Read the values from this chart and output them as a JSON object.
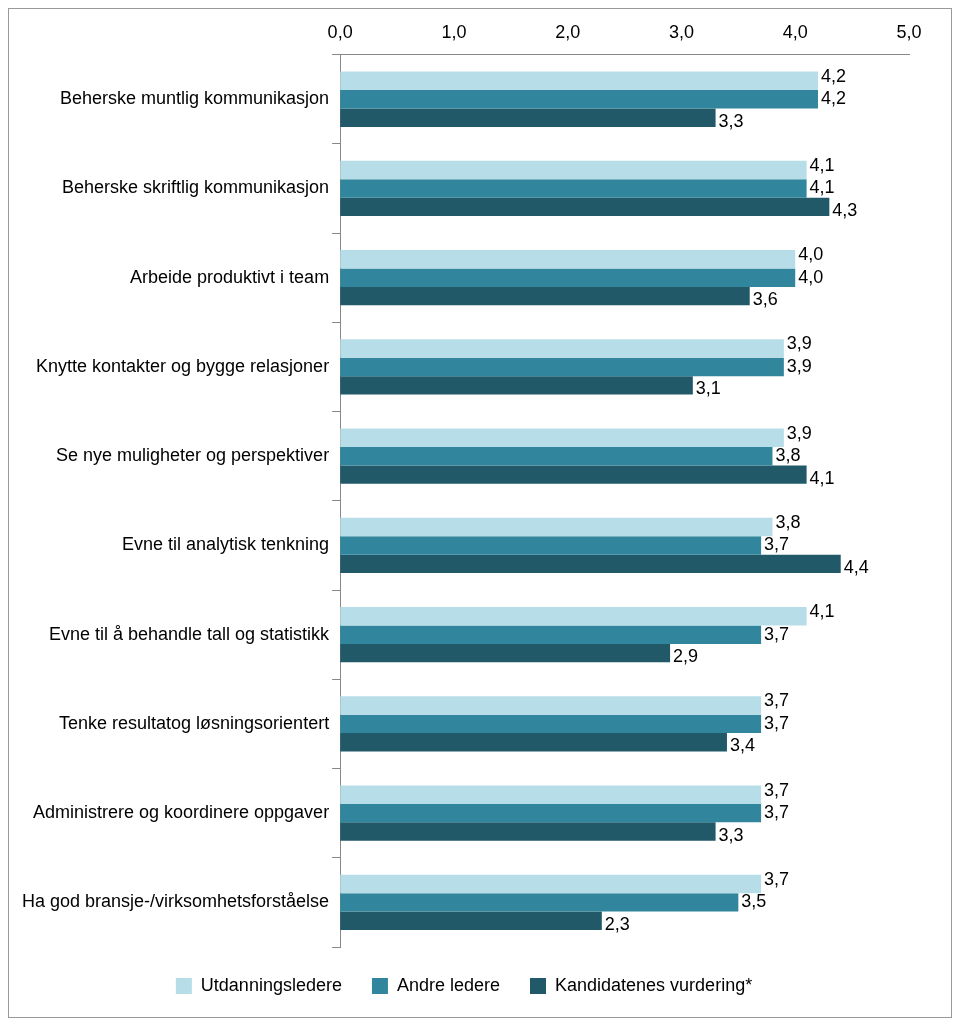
{
  "chart_data": {
    "type": "bar",
    "orientation": "horizontal",
    "categories": [
      "Beherske muntlig kommunikasjon",
      "Beherske skriftlig kommunikasjon",
      "Arbeide produktivt i team",
      "Knytte kontakter og bygge relasjoner",
      "Se nye muligheter og perspektiver",
      "Evne til analytisk tenkning",
      "Evne til å behandle tall og statistikk",
      "Tenke resultatog løsningsorientert",
      "Administrere og koordinere oppgaver",
      "Ha god bransje-/virksomhetsforståelse"
    ],
    "series": [
      {
        "name": "Utdanningsledere",
        "color": "#b7dde8",
        "values": [
          4.2,
          4.1,
          4.0,
          3.9,
          3.9,
          3.8,
          4.1,
          3.7,
          3.7,
          3.7
        ],
        "value_labels": [
          "4,2",
          "4,1",
          "4,0",
          "3,9",
          "3,9",
          "3,8",
          "4,1",
          "3,7",
          "3,7",
          "3,7"
        ]
      },
      {
        "name": "Andre ledere",
        "color": "#31859c",
        "values": [
          4.2,
          4.1,
          4.0,
          3.9,
          3.8,
          3.7,
          3.7,
          3.7,
          3.7,
          3.5
        ],
        "value_labels": [
          "4,2",
          "4,1",
          "4,0",
          "3,9",
          "3,8",
          "3,7",
          "3,7",
          "3,7",
          "3,7",
          "3,5"
        ]
      },
      {
        "name": "Kandidatenes vurdering*",
        "color": "#215968",
        "values": [
          3.3,
          4.3,
          3.6,
          3.1,
          4.1,
          4.4,
          2.9,
          3.4,
          3.3,
          2.3
        ],
        "value_labels": [
          "3,3",
          "4,3",
          "3,6",
          "3,1",
          "4,1",
          "4,4",
          "2,9",
          "3,4",
          "3,3",
          "2,3"
        ]
      }
    ],
    "xlim": [
      0,
      5
    ],
    "xticks": [
      {
        "value": 0,
        "label": "0,0"
      },
      {
        "value": 1,
        "label": "1,0"
      },
      {
        "value": 2,
        "label": "2,0"
      },
      {
        "value": 3,
        "label": "3,0"
      },
      {
        "value": 4,
        "label": "4,0"
      },
      {
        "value": 5,
        "label": "5,0"
      }
    ],
    "grid": false,
    "legend": "bottom"
  }
}
